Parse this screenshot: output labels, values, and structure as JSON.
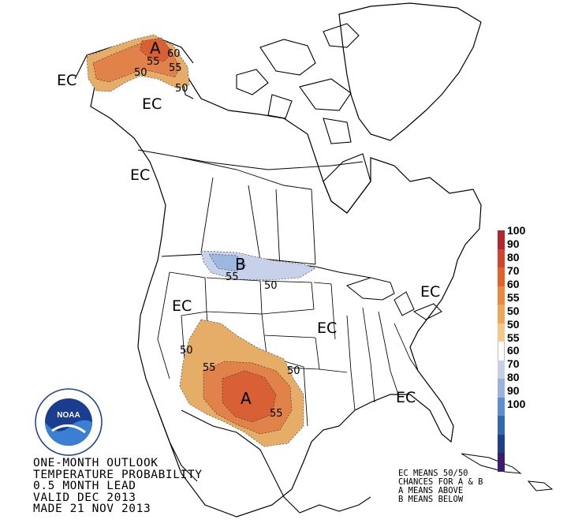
{
  "caption": {
    "line1": "ONE-MONTH OUTLOOK",
    "line2": "TEMPERATURE PROBABILITY",
    "line3": "0.5 MONTH LEAD",
    "line4": "VALID DEC 2013",
    "line5": "MADE 21 NOV 2013"
  },
  "legend_note": {
    "line1": "EC MEANS 50/50",
    "line2": "CHANCES FOR A & B",
    "line3": "A MEANS ABOVE",
    "line4": "B MEANS BELOW"
  },
  "colorbar": {
    "labels": [
      "100",
      "90",
      "80",
      "70",
      "60",
      "55",
      "50",
      "50",
      "55",
      "60",
      "70",
      "80",
      "90",
      "100"
    ],
    "colors": [
      "#b0272f",
      "#d2432c",
      "#e2612d",
      "#e9883e",
      "#eca85a",
      "#f3c889",
      "#ffffff",
      "#c5cfe6",
      "#9cb2dd",
      "#5b8fd0",
      "#2f6aaf",
      "#1f3f8c",
      "#3a1d6e"
    ]
  },
  "map_labels": {
    "ec": "EC",
    "above": "A",
    "below": "B",
    "c50": "50",
    "c55": "55",
    "c60": "60"
  },
  "colors": {
    "above_50": "#e5ad68",
    "above_55": "#e0824a",
    "above_60": "#d95f35",
    "below_50": "#c7d2ea",
    "below_55": "#9cb8e0"
  },
  "logo": {
    "text": "NOAA",
    "ring_text": "NATIONAL OCEANIC AND ATMOSPHERIC ADMINISTRATION · U.S. DEPARTMENT OF COMMERCE"
  }
}
